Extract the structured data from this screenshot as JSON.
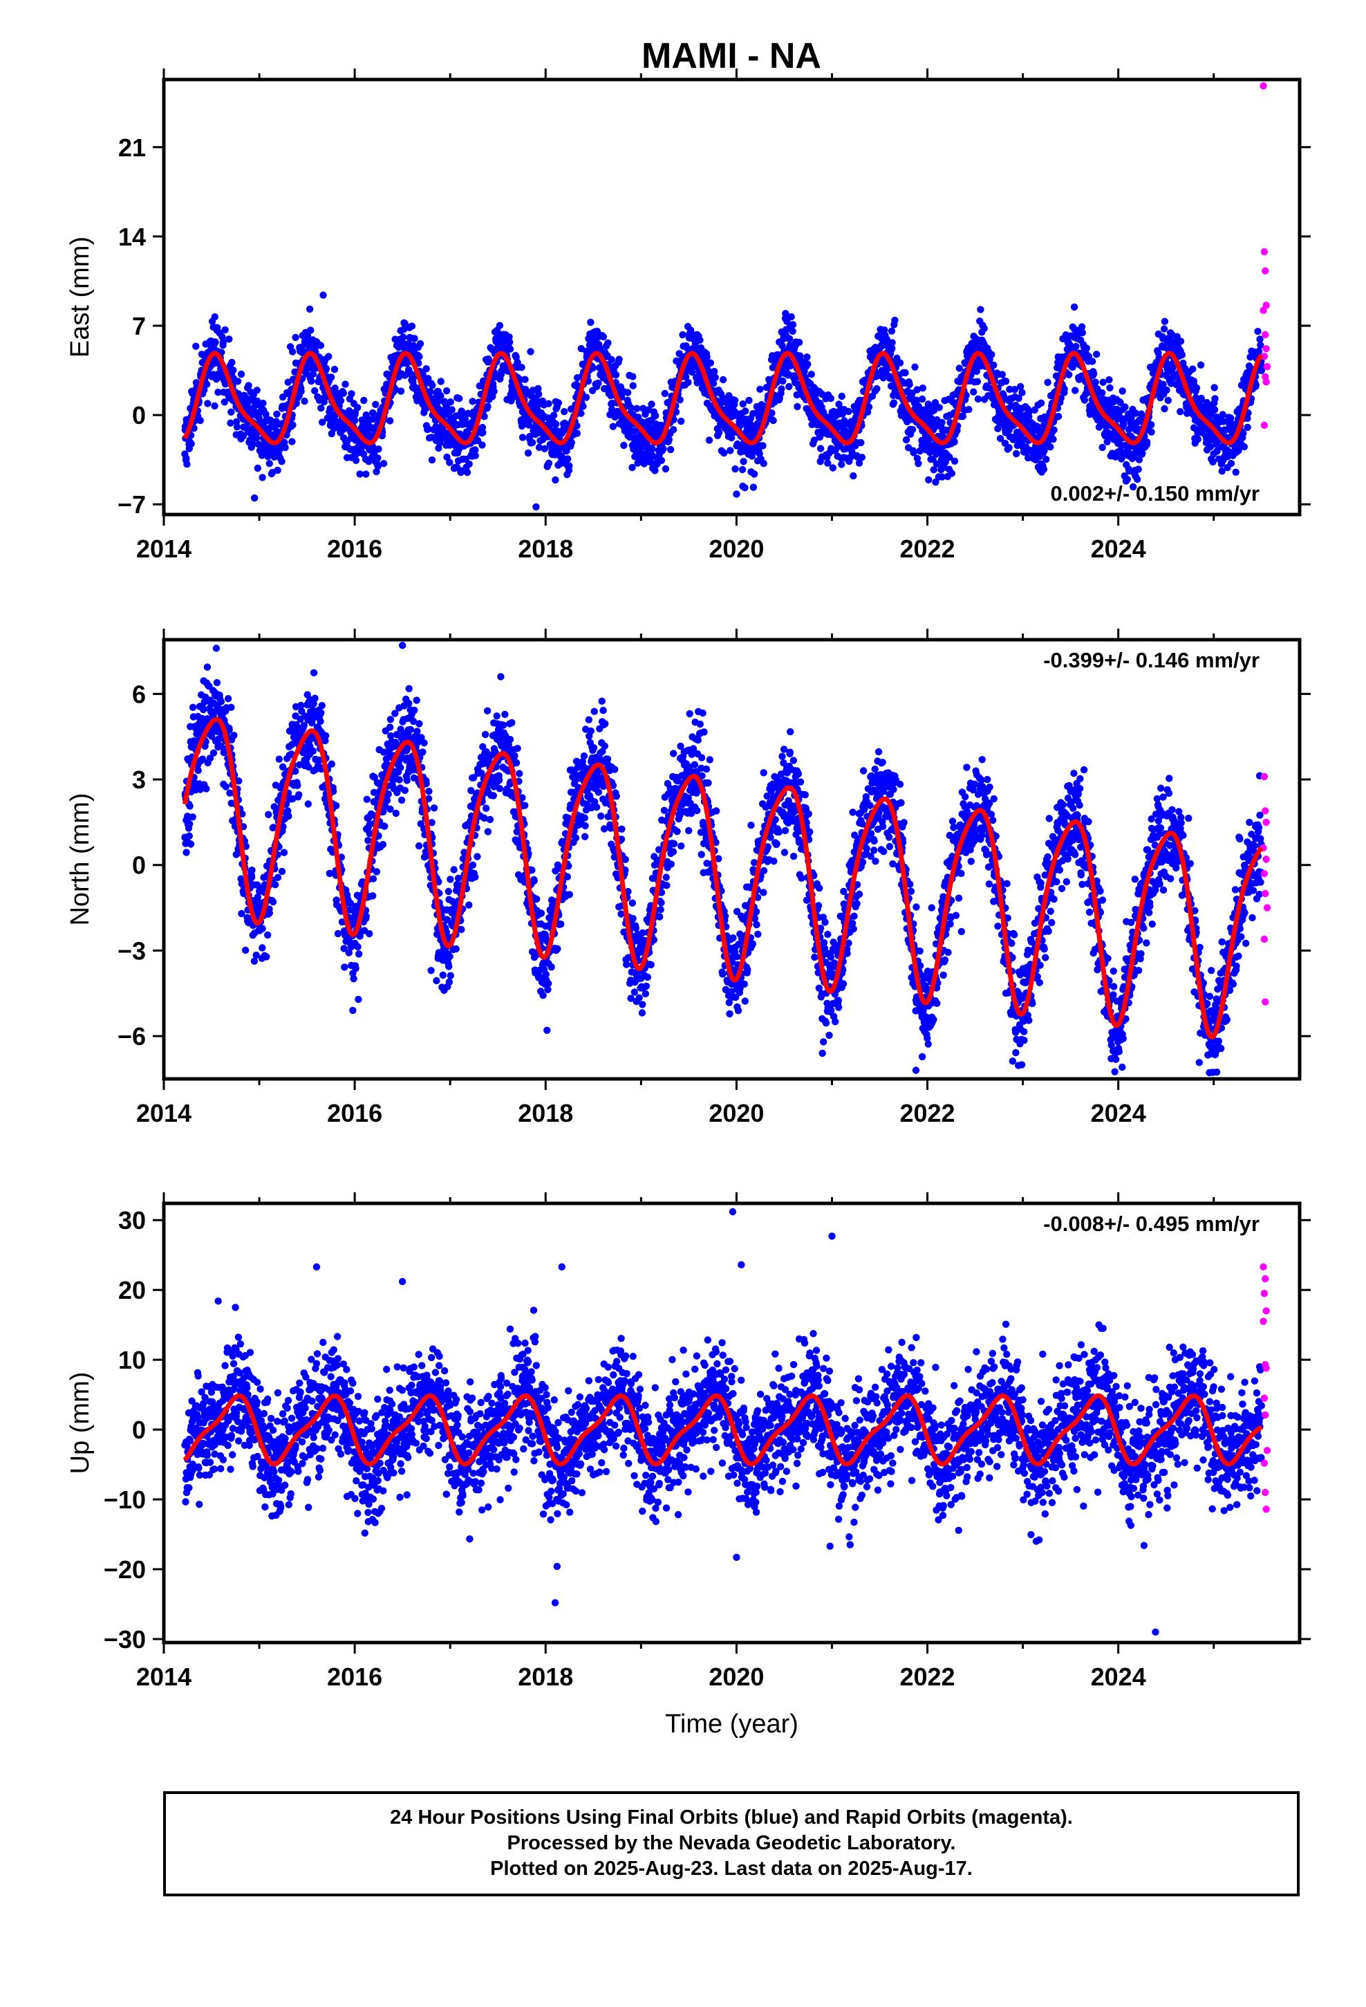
{
  "title": "MAMI - NA",
  "footer": {
    "line1": "24 Hour Positions Using Final Orbits (blue) and Rapid Orbits (magenta).",
    "line2": "Processed by the Nevada Geodetic Laboratory.",
    "line3": "Plotted on 2025-Aug-23. Last data on 2025-Aug-17."
  },
  "colors": {
    "final_orbits": "#0000ff",
    "rapid_orbits": "#ff00ff",
    "model_fit": "#ff0000"
  },
  "chart_data": [
    {
      "type": "scatter",
      "ylabel": "East (mm)",
      "xlabel": "",
      "x_ticks": [
        "2014",
        "2016",
        "2018",
        "2020",
        "2022",
        "2024"
      ],
      "y_ticks": [
        "−7",
        "0",
        "7",
        "14",
        "21"
      ],
      "y_tick_values": [
        -7,
        0,
        7,
        14,
        21
      ],
      "xlim": [
        2014.0,
        2025.9
      ],
      "ylim": [
        -7.8,
        26.3
      ],
      "rate_text": "0.002+/- 0.150 mm/yr",
      "rate_position": "bottom-right",
      "final_range": [
        2014.22,
        2025.5
      ],
      "model": {
        "rate": 0.0,
        "offset": 0.9,
        "annual_amp": 3.2,
        "annual_peak": 0.57,
        "semiannual_amp": 0.9,
        "semiannual_phase": 0.5,
        "noise": 1.3,
        "seed": 11
      },
      "outliers_blue": [
        [
          2015.67,
          9.4
        ],
        [
          2017.9,
          -7.2
        ],
        [
          2014.95,
          -6.5
        ],
        [
          2020.0,
          -6.2
        ]
      ],
      "rapid_points": [
        [
          2025.52,
          25.8
        ],
        [
          2025.53,
          12.8
        ],
        [
          2025.54,
          11.3
        ],
        [
          2025.55,
          8.6
        ],
        [
          2025.52,
          8.2
        ],
        [
          2025.54,
          6.3
        ],
        [
          2025.55,
          5.2
        ],
        [
          2025.53,
          4.6
        ],
        [
          2025.56,
          3.8
        ],
        [
          2025.54,
          3.0
        ],
        [
          2025.55,
          2.6
        ],
        [
          2025.53,
          -0.8
        ]
      ]
    },
    {
      "type": "scatter",
      "ylabel": "North (mm)",
      "xlabel": "",
      "x_ticks": [
        "2014",
        "2016",
        "2018",
        "2020",
        "2022",
        "2024"
      ],
      "y_ticks": [
        "−6",
        "−3",
        "0",
        "3",
        "6"
      ],
      "y_tick_values": [
        -6,
        -3,
        0,
        3,
        6
      ],
      "xlim": [
        2014.0,
        2025.9
      ],
      "ylim": [
        -7.5,
        7.9
      ],
      "rate_text": "-0.399+/- 0.146 mm/yr",
      "rate_position": "top-right",
      "final_range": [
        2014.22,
        2025.5
      ],
      "model": {
        "rate": -0.399,
        "offset": 2.2,
        "ref_year": 2014.2,
        "annual_amp": 3.4,
        "annual_peak": 0.5,
        "semiannual_amp": 0.6,
        "semiannual_phase": 0.2,
        "noise": 0.9,
        "seed": 23
      },
      "outliers_blue": [
        [
          2016.5,
          7.7
        ],
        [
          2014.55,
          7.6
        ],
        [
          2021.88,
          -7.2
        ],
        [
          2020.9,
          -6.6
        ],
        [
          2016.8,
          -3.7
        ],
        [
          2015.98,
          -5.1
        ]
      ],
      "rapid_points": [
        [
          2025.53,
          3.1
        ],
        [
          2025.54,
          1.9
        ],
        [
          2025.55,
          1.5
        ],
        [
          2025.52,
          0.6
        ],
        [
          2025.55,
          0.2
        ],
        [
          2025.53,
          -0.3
        ],
        [
          2025.54,
          -1.0
        ],
        [
          2025.56,
          -1.5
        ],
        [
          2025.53,
          -2.6
        ],
        [
          2025.54,
          -4.8
        ]
      ]
    },
    {
      "type": "scatter",
      "ylabel": "Up (mm)",
      "xlabel": "Time (year)",
      "x_ticks": [
        "2014",
        "2016",
        "2018",
        "2020",
        "2022",
        "2024"
      ],
      "y_ticks": [
        "−30",
        "−20",
        "−10",
        "0",
        "10",
        "20",
        "30"
      ],
      "y_tick_values": [
        -30,
        -20,
        -10,
        0,
        10,
        20,
        30
      ],
      "xlim": [
        2014.0,
        2025.9
      ],
      "ylim": [
        -30.5,
        32.4
      ],
      "rate_text": "-0.008+/- 0.495 mm/yr",
      "rate_position": "top-right",
      "final_range": [
        2014.22,
        2025.5
      ],
      "model": {
        "rate": 0.0,
        "offset": 0.0,
        "annual_amp": 4.3,
        "annual_peak": 0.72,
        "semiannual_amp": 1.3,
        "semiannual_phase": 0.35,
        "noise": 4.0,
        "seed": 37
      },
      "outliers_blue": [
        [
          2019.96,
          31.2
        ],
        [
          2021.0,
          27.7
        ],
        [
          2015.6,
          23.3
        ],
        [
          2018.17,
          23.3
        ],
        [
          2020.05,
          23.6
        ],
        [
          2016.5,
          21.2
        ],
        [
          2018.12,
          -19.6
        ],
        [
          2018.1,
          -24.8
        ],
        [
          2020.0,
          -18.3
        ],
        [
          2020.98,
          -16.7
        ],
        [
          2024.39,
          -29.0
        ],
        [
          2024.27,
          -16.6
        ],
        [
          2014.57,
          18.4
        ],
        [
          2014.75,
          17.5
        ],
        [
          2023.17,
          -15.8
        ]
      ],
      "rapid_points": [
        [
          2025.52,
          23.3
        ],
        [
          2025.54,
          21.6
        ],
        [
          2025.53,
          19.5
        ],
        [
          2025.55,
          17.0
        ],
        [
          2025.52,
          15.5
        ],
        [
          2025.54,
          9.3
        ],
        [
          2025.55,
          8.8
        ],
        [
          2025.53,
          4.5
        ],
        [
          2025.54,
          2.1
        ],
        [
          2025.56,
          -3.0
        ],
        [
          2025.53,
          -4.8
        ],
        [
          2025.54,
          -9.0
        ],
        [
          2025.55,
          -11.4
        ]
      ]
    }
  ]
}
